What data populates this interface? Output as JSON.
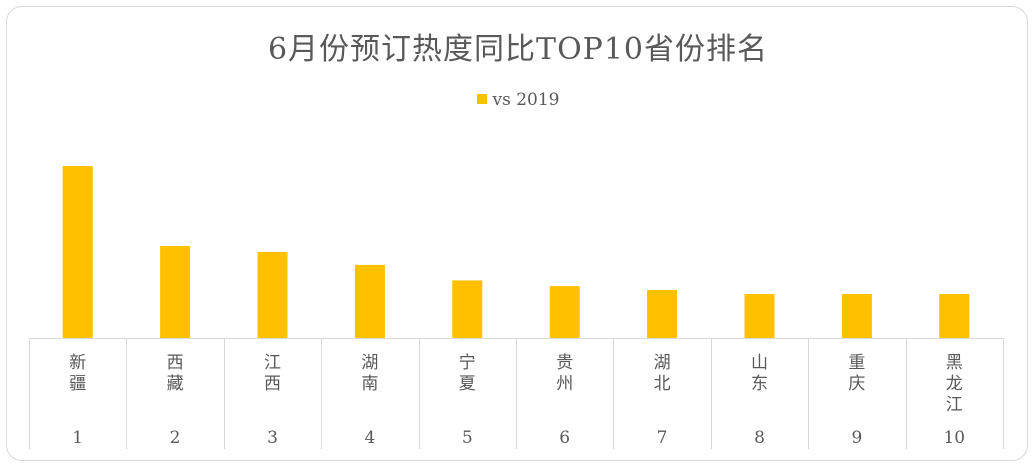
{
  "chart_data": {
    "type": "bar",
    "title": "6月份预订热度同比TOP10省份排名",
    "legend_position": "top",
    "categories": [
      {
        "rank": "1",
        "province": "新疆"
      },
      {
        "rank": "2",
        "province": "西藏"
      },
      {
        "rank": "3",
        "province": "江西"
      },
      {
        "rank": "4",
        "province": "湖南"
      },
      {
        "rank": "5",
        "province": "宁夏"
      },
      {
        "rank": "6",
        "province": "贵州"
      },
      {
        "rank": "7",
        "province": "湖北"
      },
      {
        "rank": "8",
        "province": "山东"
      },
      {
        "rank": "9",
        "province": "重庆"
      },
      {
        "rank": "10",
        "province": "黑龙江"
      }
    ],
    "series": [
      {
        "name": "vs 2019",
        "color": "#FFC000",
        "values": [
          100,
          53.5,
          50,
          42.5,
          33.5,
          30.2,
          27.9,
          25.6,
          25.6,
          25.6
        ]
      }
    ],
    "ylim": [
      0,
      100
    ],
    "grid": false,
    "xlabel": "",
    "ylabel": ""
  }
}
